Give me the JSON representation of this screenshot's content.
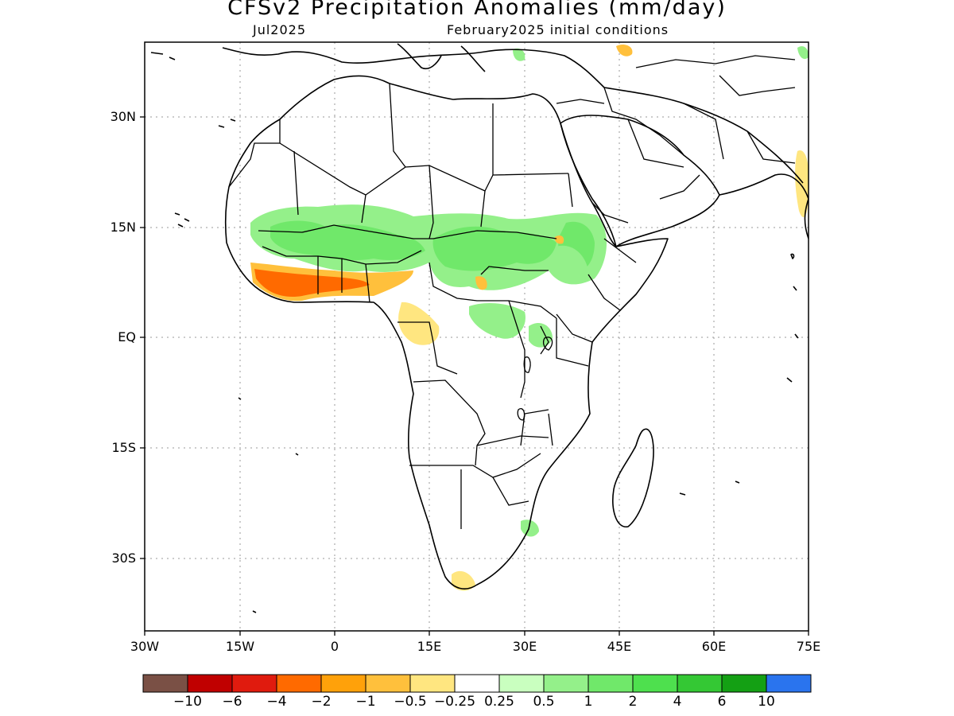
{
  "title": "CFSv2 Precipitation Anomalies (mm/day)",
  "subtitle_left": "Jul2025",
  "subtitle_right": "February2025 initial conditions",
  "y_ticks": [
    "30N",
    "15N",
    "EQ",
    "15S",
    "30S"
  ],
  "x_ticks": [
    "30W",
    "15W",
    "0",
    "15E",
    "30E",
    "45E",
    "60E",
    "75E"
  ],
  "colorbar": {
    "colors": [
      "#7a5045",
      "#c00000",
      "#e01b0e",
      "#ff6a00",
      "#ffa10a",
      "#ffc03c",
      "#ffe680",
      "#ffffff",
      "#c9ffbf",
      "#94f08a",
      "#70e86a",
      "#4ee04e",
      "#34c834",
      "#14a014",
      "#2a74ee"
    ],
    "labels": [
      "−10",
      "−6",
      "−4",
      "−2",
      "−1",
      "−0.5",
      "−0.25",
      "0.25",
      "0.5",
      "1",
      "2",
      "4",
      "6",
      "10"
    ]
  },
  "map_extent": {
    "lon": [
      -30,
      75
    ],
    "lat": [
      -40,
      40
    ]
  },
  "anomaly_regions": [
    {
      "name": "sahel-wet",
      "level": 2,
      "color": "#70e86a"
    },
    {
      "name": "west-africa-dry",
      "level": -2,
      "color": "#ff6a00"
    },
    {
      "name": "ethiopia-wet",
      "level": 2,
      "color": "#70e86a"
    },
    {
      "name": "gabon-dry",
      "level": -0.5,
      "color": "#ffe680"
    },
    {
      "name": "south-africa-dry",
      "level": -0.5,
      "color": "#ffe680"
    }
  ]
}
